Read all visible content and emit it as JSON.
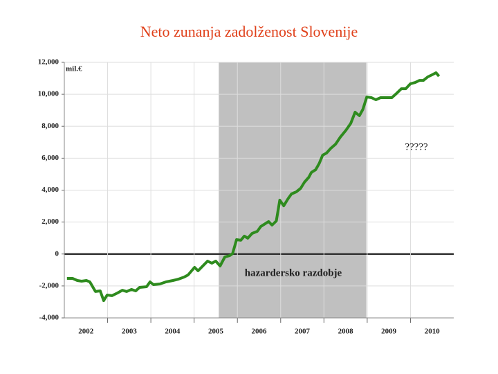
{
  "chart_data": {
    "type": "line",
    "title": "Neto zunanja zadolženost Slovenije",
    "y_unit": "mil.€",
    "annotations": [
      "?????",
      "hazardersko razdobje"
    ],
    "shade": [
      2005.57,
      2008.98
    ],
    "shade_color": "#c0c0c0",
    "xlim": [
      2002,
      2011
    ],
    "xticks": [
      {
        "value": 2002.5,
        "label": "2002"
      },
      {
        "value": 2003.5,
        "label": "2003"
      },
      {
        "value": 2004.5,
        "label": "2004"
      },
      {
        "value": 2005.5,
        "label": "2005"
      },
      {
        "value": 2006.5,
        "label": "2006"
      },
      {
        "value": 2007.5,
        "label": "2007"
      },
      {
        "value": 2008.5,
        "label": "2008"
      },
      {
        "value": 2009.5,
        "label": "2009"
      },
      {
        "value": 2010.5,
        "label": "2010"
      }
    ],
    "xgrid": [
      2003,
      2004,
      2005,
      2006,
      2007,
      2008,
      2009,
      2010
    ],
    "ylim": [
      -4000,
      12000
    ],
    "yticks": [
      {
        "value": -4000,
        "label": "-4,000"
      },
      {
        "value": -2000,
        "label": "-2,000"
      },
      0,
      {
        "value": 2000,
        "label": "2,000"
      },
      {
        "value": 4000,
        "label": "4,000"
      },
      {
        "value": 6000,
        "label": "6,000"
      },
      {
        "value": 8000,
        "label": "8,000"
      },
      {
        "value": 10000,
        "label": "10,000"
      },
      {
        "value": 12000,
        "label": "12,000"
      }
    ],
    "grid": true,
    "series": [
      {
        "color": "#2e8b1e",
        "x": [
          2002.06,
          2002.19,
          2002.3,
          2002.4,
          2002.51,
          2002.59,
          2002.72,
          2002.83,
          2002.91,
          2002.99,
          2003.1,
          2003.23,
          2003.34,
          2003.44,
          2003.55,
          2003.65,
          2003.74,
          2003.9,
          2003.98,
          2004.06,
          2004.21,
          2004.35,
          2004.51,
          2004.64,
          2004.77,
          2004.86,
          2005.01,
          2005.09,
          2005.2,
          2005.31,
          2005.41,
          2005.5,
          2005.6,
          2005.71,
          2005.82,
          2005.89,
          2005.98,
          2006.08,
          2006.16,
          2006.24,
          2006.34,
          2006.46,
          2006.54,
          2006.72,
          2006.8,
          2006.9,
          2006.98,
          2007.07,
          2007.17,
          2007.25,
          2007.36,
          2007.46,
          2007.55,
          2007.65,
          2007.71,
          2007.81,
          2007.89,
          2007.97,
          2008.06,
          2008.16,
          2008.27,
          2008.38,
          2008.51,
          2008.62,
          2008.72,
          2008.82,
          2008.9,
          2008.99,
          2009.1,
          2009.2,
          2009.31,
          2009.42,
          2009.57,
          2009.66,
          2009.79,
          2009.89,
          2010.0,
          2010.11,
          2010.21,
          2010.3,
          2010.4,
          2010.5,
          2010.59,
          2010.66
        ],
        "values": [
          -1530,
          -1530,
          -1660,
          -1700,
          -1660,
          -1745,
          -2350,
          -2310,
          -2920,
          -2570,
          -2610,
          -2440,
          -2270,
          -2350,
          -2220,
          -2310,
          -2090,
          -2050,
          -1745,
          -1920,
          -1875,
          -1745,
          -1660,
          -1570,
          -1440,
          -1310,
          -835,
          -1050,
          -750,
          -445,
          -575,
          -445,
          -750,
          -185,
          -100,
          30,
          900,
          860,
          1120,
          990,
          1290,
          1420,
          1720,
          2030,
          1810,
          2070,
          3370,
          3020,
          3460,
          3760,
          3890,
          4110,
          4500,
          4800,
          5110,
          5280,
          5670,
          6190,
          6320,
          6620,
          6880,
          7320,
          7750,
          8180,
          8880,
          8660,
          9050,
          9830,
          9790,
          9660,
          9790,
          9790,
          9790,
          10010,
          10350,
          10350,
          10660,
          10740,
          10870,
          10870,
          11090,
          11220,
          11350,
          11130
        ]
      }
    ]
  }
}
